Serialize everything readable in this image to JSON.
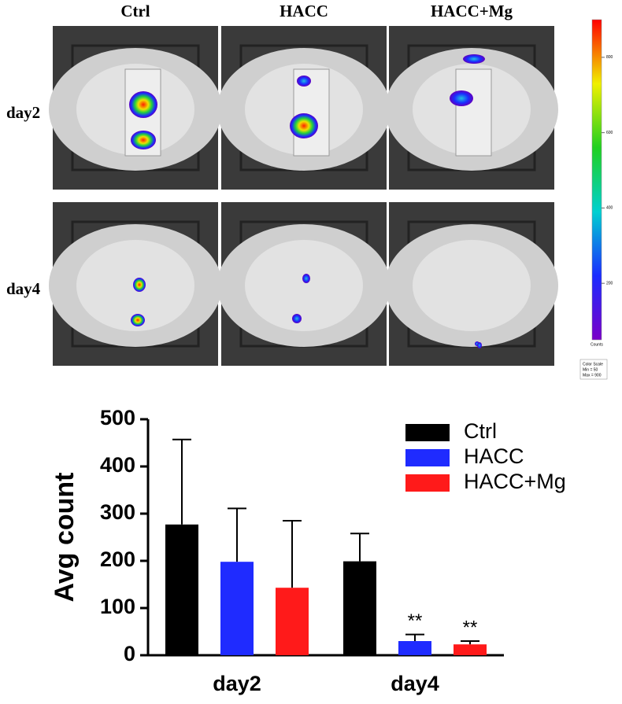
{
  "panels": {
    "columns": [
      "Ctrl",
      "HACC",
      "HACC+Mg"
    ],
    "rows": [
      "day2",
      "day4"
    ],
    "colorbar": {
      "ticks": [
        200,
        400,
        600,
        800
      ],
      "label": "Counts",
      "title": "Color Scale",
      "min": {
        "value": 50,
        "label": "Min = 50"
      },
      "max": {
        "value": 900,
        "label": "Max = 900"
      }
    }
  },
  "chart_data": {
    "type": "bar",
    "ylabel": "Avg count",
    "categories": [
      "day2",
      "day4"
    ],
    "series": [
      {
        "name": "Ctrl",
        "color": "#000000",
        "values": [
          277,
          199
        ],
        "errors": [
          180,
          59
        ]
      },
      {
        "name": "HACC",
        "color": "#1f2bff",
        "values": [
          198,
          30
        ],
        "errors": [
          113,
          14
        ],
        "significance": [
          null,
          "**"
        ]
      },
      {
        "name": "HACC+Mg",
        "color": "#ff1a1a",
        "values": [
          143,
          23
        ],
        "errors": [
          142,
          7
        ],
        "significance": [
          null,
          "**"
        ]
      }
    ],
    "ylim": [
      0,
      500
    ],
    "yticks": [
      0,
      100,
      200,
      300,
      400,
      500
    ],
    "legend": "top-right"
  }
}
